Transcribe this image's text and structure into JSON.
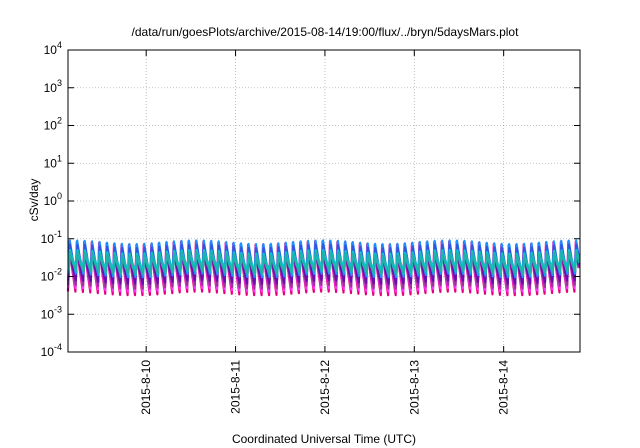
{
  "chart_data": {
    "type": "line",
    "title": "/data/run/goesPlots/archive/2015-08-14/19:00/flux/../bryn/5daysMars.plot",
    "xlabel": "Coordinated Universal Time (UTC)",
    "ylabel": "cSv/day",
    "yscale": "log",
    "ylim": [
      0.0001,
      10000
    ],
    "xlim": [
      "2015-08-09T03:00",
      "2015-08-14T20:30"
    ],
    "yticks": [
      {
        "base": "10",
        "exp": "4"
      },
      {
        "base": "10",
        "exp": "3"
      },
      {
        "base": "10",
        "exp": "2"
      },
      {
        "base": "10",
        "exp": "1"
      },
      {
        "base": "10",
        "exp": "0"
      },
      {
        "base": "10",
        "exp": "-1"
      },
      {
        "base": "10",
        "exp": "-2"
      },
      {
        "base": "10",
        "exp": "-3"
      },
      {
        "base": "10",
        "exp": "-4"
      }
    ],
    "xticks": [
      "2015-8-10",
      "2015-8-11",
      "2015-8-12",
      "2015-8-13",
      "2015-8-14"
    ],
    "grid": true,
    "legend": "none",
    "orbit_period_hours": 2.0,
    "series": [
      {
        "color": "#e6007e",
        "peak": 0.085,
        "trough": 0.004
      },
      {
        "color": "#ff33ff",
        "peak": 0.075,
        "trough": 0.005
      },
      {
        "color": "#993399",
        "peak": 0.065,
        "trough": 0.006
      },
      {
        "color": "#6a0dad",
        "peak": 0.058,
        "trough": 0.008
      },
      {
        "color": "#1e90ff",
        "peak": 0.09,
        "trough": 0.012
      },
      {
        "color": "#3355dd",
        "peak": 0.07,
        "trough": 0.015
      },
      {
        "color": "#00ced1",
        "peak": 0.05,
        "trough": 0.018
      },
      {
        "color": "#20b2aa",
        "peak": 0.045,
        "trough": 0.014
      }
    ]
  }
}
